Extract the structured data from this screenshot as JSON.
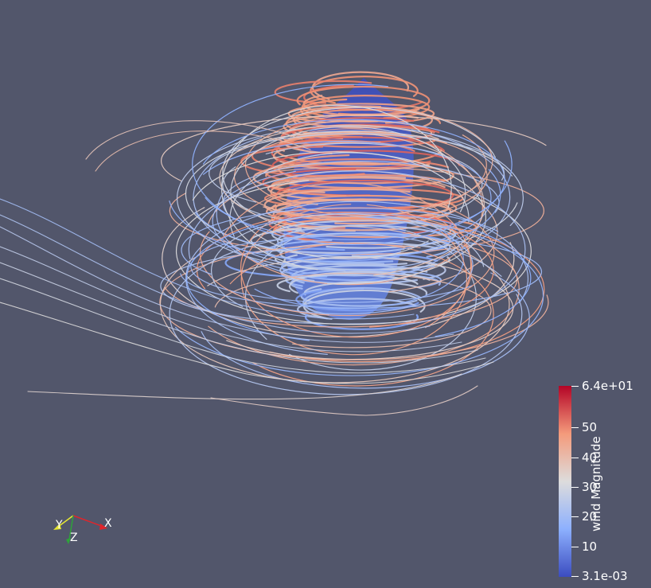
{
  "viewport": {
    "background": "#52566b",
    "content": "streamline-tubes"
  },
  "colorbar": {
    "title": "wind Magnitude",
    "colormap": [
      "#3b4cc0",
      "#8db0fe",
      "#dddcdc",
      "#f49a7b",
      "#b40426"
    ],
    "max_label": "6.4e+01",
    "min_label": "3.1e-03",
    "ticks": [
      {
        "label": "50",
        "value": 50
      },
      {
        "label": "40",
        "value": 40
      },
      {
        "label": "30",
        "value": 30
      },
      {
        "label": "20",
        "value": 20
      },
      {
        "label": "10",
        "value": 10
      }
    ],
    "range": [
      0.0031,
      64
    ]
  },
  "orientation_axes": {
    "x_label": "X",
    "y_label": "Y",
    "z_label": "Z",
    "x_color": "#e0252b",
    "y_color": "#e6e632",
    "z_color": "#2ea33a"
  }
}
